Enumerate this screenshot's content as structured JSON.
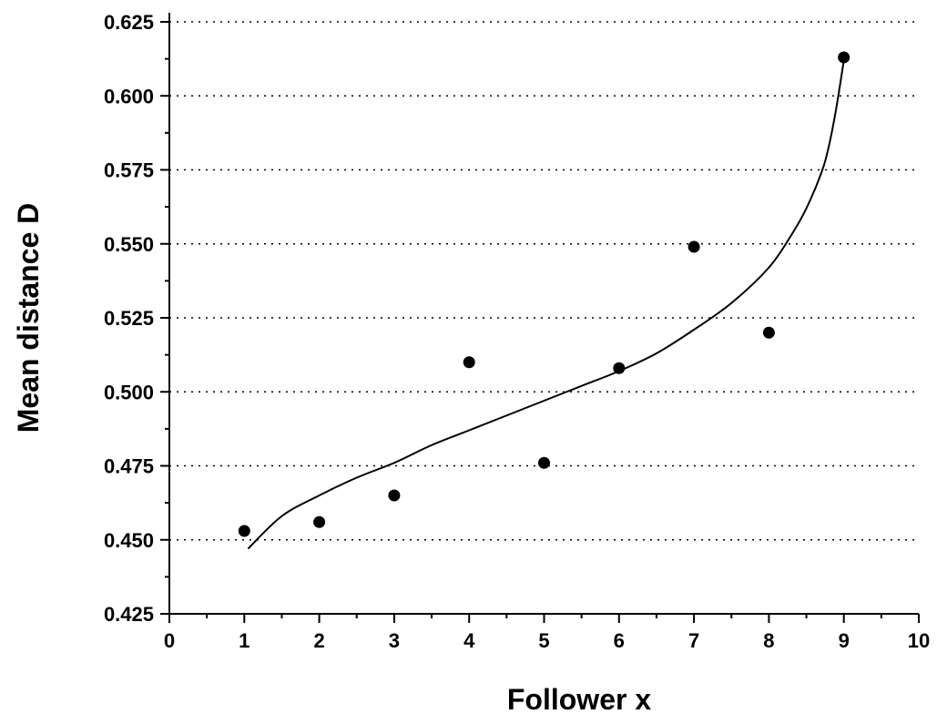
{
  "chart_data": {
    "type": "scatter",
    "title": "",
    "xlabel": "Follower x",
    "ylabel": "Mean distance D",
    "xlim": [
      0,
      10
    ],
    "ylim": [
      0.425,
      0.625
    ],
    "x_ticks": [
      0,
      1,
      2,
      3,
      4,
      5,
      6,
      7,
      8,
      9,
      10
    ],
    "x_tick_labels": [
      "0",
      "1",
      "2",
      "3",
      "4",
      "5",
      "6",
      "7",
      "8",
      "9",
      "10"
    ],
    "y_ticks": [
      0.425,
      0.45,
      0.475,
      0.5,
      0.525,
      0.55,
      0.575,
      0.6,
      0.625
    ],
    "y_tick_labels": [
      "0.425",
      "0.450",
      "0.475",
      "0.500",
      "0.525",
      "0.550",
      "0.575",
      "0.600",
      "0.625"
    ],
    "grid": "horizontal-dotted",
    "legend": "none",
    "series": [
      {
        "kind": "points",
        "x": [
          1,
          2,
          3,
          4,
          5,
          6,
          7,
          8,
          9
        ],
        "y": [
          0.453,
          0.456,
          0.465,
          0.51,
          0.476,
          0.508,
          0.549,
          0.52,
          0.613
        ],
        "color": "#000000"
      },
      {
        "kind": "fit-curve",
        "x": [
          1.05,
          1.5,
          2,
          2.5,
          3,
          3.5,
          4,
          4.5,
          5,
          5.5,
          6,
          6.5,
          7,
          7.5,
          8,
          8.3,
          8.5,
          8.7,
          8.8,
          8.9,
          9.0
        ],
        "y": [
          0.447,
          0.458,
          0.465,
          0.471,
          0.476,
          0.482,
          0.487,
          0.492,
          0.497,
          0.502,
          0.507,
          0.513,
          0.521,
          0.53,
          0.542,
          0.553,
          0.562,
          0.574,
          0.583,
          0.596,
          0.612
        ],
        "color": "#000000"
      }
    ]
  }
}
